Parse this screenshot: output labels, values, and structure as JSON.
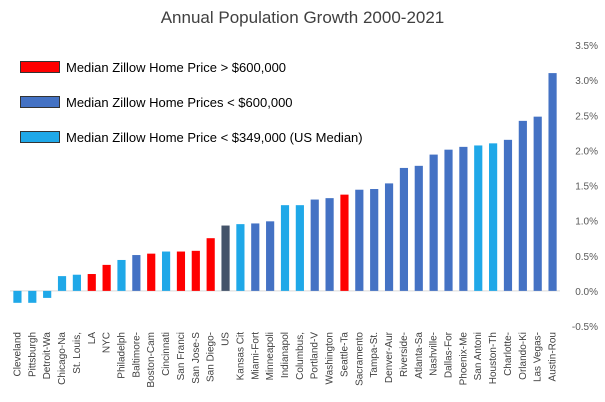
{
  "chart_data": {
    "type": "bar",
    "title": "Annual Population Growth 2000-2021",
    "xlabel": "",
    "ylabel": "",
    "ylim": [
      -0.5,
      3.5
    ],
    "yticks": [
      "3.5%",
      "3.0%",
      "2.5%",
      "2.0%",
      "1.5%",
      "1.0%",
      "0.5%",
      "0.0%",
      "-0.5%"
    ],
    "ytick_values": [
      3.5,
      3.0,
      2.5,
      2.0,
      1.5,
      1.0,
      0.5,
      0.0,
      -0.5
    ],
    "grid": false,
    "legend": [
      {
        "label": "Median Zillow Home Price > $600,000",
        "color": "#ff0000"
      },
      {
        "label": "Median Zillow Home Prices < $600,000",
        "color": "#4472c4"
      },
      {
        "label": "Median Zillow Home Price < $349,000 (US Median)",
        "color": "#1fa8e8"
      }
    ],
    "categories": [
      "Cleveland",
      "Pittsburgh",
      "Detroit-Wa",
      "Chicago-Na",
      "St. Louis,",
      "LA",
      "NYC",
      "Philadelph",
      "Baltimore-",
      "Boston-Cam",
      "Cincinnati",
      "San Franci",
      "San Jose-S",
      "San Diego-",
      "US",
      "Kansas Cit",
      "Miami-Fort",
      "Minneapoli",
      "Indianapol",
      "Columbus,",
      "Portland-V",
      "Washington",
      "Seattle-Ta",
      "Sacramento",
      "Tampa-St.",
      "Denver-Aur",
      "Riverside-",
      "Atlanta-Sa",
      "Nashville-",
      "Dallas-For",
      "Phoenix-Me",
      "San Antoni",
      "Houston-Th",
      "Charlotte-",
      "Orlando-Ki",
      "Las Vegas-",
      "Austin-Rou"
    ],
    "values": [
      -0.17,
      -0.17,
      -0.1,
      0.21,
      0.23,
      0.24,
      0.37,
      0.44,
      0.51,
      0.53,
      0.56,
      0.56,
      0.57,
      0.75,
      0.93,
      0.95,
      0.96,
      0.99,
      1.22,
      1.22,
      1.3,
      1.32,
      1.37,
      1.44,
      1.45,
      1.53,
      1.75,
      1.78,
      1.94,
      2.01,
      2.05,
      2.07,
      2.1,
      2.15,
      2.42,
      2.48,
      3.1
    ],
    "colors": [
      "#1fa8e8",
      "#1fa8e8",
      "#1fa8e8",
      "#1fa8e8",
      "#1fa8e8",
      "#ff0000",
      "#ff0000",
      "#1fa8e8",
      "#4472c4",
      "#ff0000",
      "#1fa8e8",
      "#ff0000",
      "#ff0000",
      "#ff0000",
      "#44546a",
      "#1fa8e8",
      "#4472c4",
      "#4472c4",
      "#1fa8e8",
      "#1fa8e8",
      "#4472c4",
      "#4472c4",
      "#ff0000",
      "#4472c4",
      "#4472c4",
      "#4472c4",
      "#4472c4",
      "#4472c4",
      "#4472c4",
      "#4472c4",
      "#4472c4",
      "#1fa8e8",
      "#1fa8e8",
      "#4472c4",
      "#4472c4",
      "#4472c4",
      "#4472c4"
    ]
  }
}
